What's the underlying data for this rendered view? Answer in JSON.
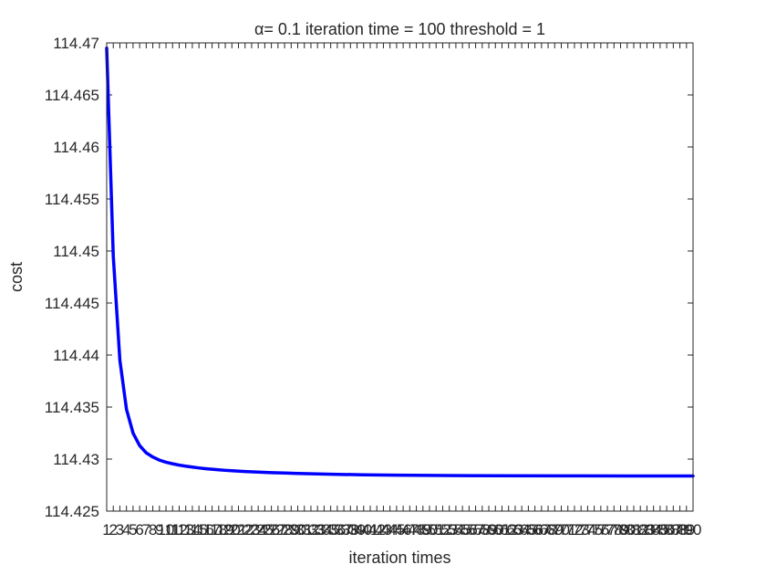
{
  "chart_data": {
    "type": "line",
    "title": "α= 0.1   iteration time = 100  threshold = 1",
    "xlabel": "iteration times",
    "ylabel": "cost",
    "xlim": [
      1,
      90
    ],
    "ylim": [
      114.425,
      114.47
    ],
    "y_ticks": [
      "114.425",
      "114.43",
      "114.435",
      "114.44",
      "114.445",
      "114.45",
      "114.455",
      "114.46",
      "114.465",
      "114.47"
    ],
    "x_ticks_from": 1,
    "x_ticks_to": 90,
    "grid": false,
    "series": [
      {
        "color": "#0000ff",
        "x": [
          1,
          2,
          3,
          4,
          5,
          6,
          7,
          8,
          9,
          10,
          11,
          12,
          13,
          14,
          15,
          16,
          17,
          18,
          19,
          20,
          22,
          24,
          26,
          28,
          30,
          33,
          36,
          40,
          45,
          50,
          55,
          60,
          70,
          80,
          90
        ],
        "y": [
          114.4695,
          114.4495,
          114.4395,
          114.4348,
          114.4325,
          114.4313,
          114.4306,
          114.4302,
          114.4299,
          114.4297,
          114.42955,
          114.42942,
          114.42932,
          114.42923,
          114.42915,
          114.42908,
          114.42902,
          114.42897,
          114.42892,
          114.42888,
          114.42881,
          114.42875,
          114.4287,
          114.42866,
          114.42862,
          114.42857,
          114.42853,
          114.42849,
          114.42845,
          114.42843,
          114.42841,
          114.4284,
          114.42839,
          114.42838,
          114.42838
        ]
      }
    ]
  }
}
